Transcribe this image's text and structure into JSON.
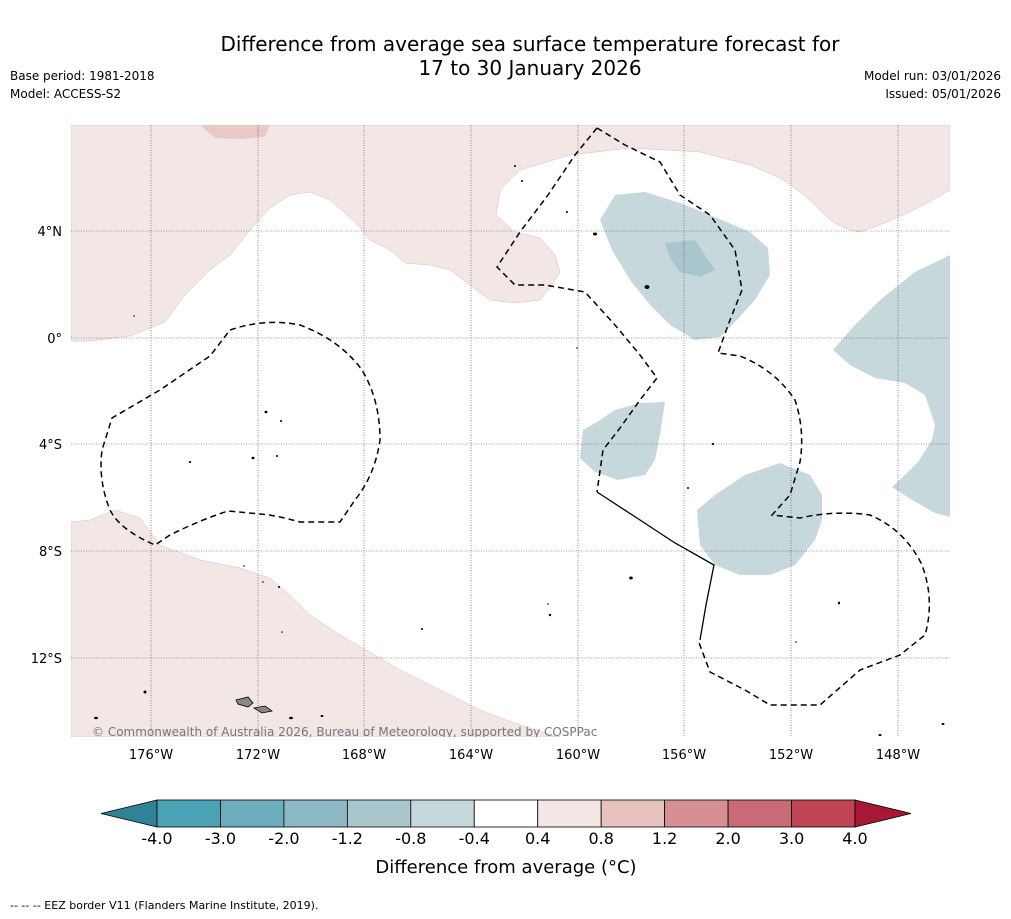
{
  "title": {
    "line1": "Difference from average sea surface temperature forecast for",
    "line2": "17 to 30 January 2026"
  },
  "meta": {
    "base_period": "Base period: 1981-2018",
    "model": "Model: ACCESS-S2",
    "model_run": "Model run: 03/01/2026",
    "issued": "Issued: 05/01/2026"
  },
  "map": {
    "lat_labels": [
      "4°N",
      "0°",
      "4°S",
      "8°S",
      "12°S"
    ],
    "lon_labels": [
      "176°W",
      "172°W",
      "168°W",
      "164°W",
      "160°W",
      "156°W",
      "152°W",
      "148°W"
    ],
    "credit": "© Commonwealth of Australia 2026, Bureau of Meteorology, supported by COSPPac"
  },
  "colorbar": {
    "ticks": [
      "-4.0",
      "-3.0",
      "-2.0",
      "-1.2",
      "-0.8",
      "-0.4",
      "0.4",
      "0.8",
      "1.2",
      "2.0",
      "3.0",
      "4.0"
    ],
    "colors": [
      "#2f8394",
      "#4aa3b4",
      "#6daebd",
      "#8db8c4",
      "#a9c6cd",
      "#c7d8dd",
      "#ffffff",
      "#f3e6e5",
      "#e6c3bf",
      "#d68f95",
      "#c86b75",
      "#bf4555",
      "#a81835"
    ],
    "title": "Difference from average (°C)"
  },
  "footnote": "--  --  -- EEZ border V11 (Flanders Marine Institute, 2019)."
}
